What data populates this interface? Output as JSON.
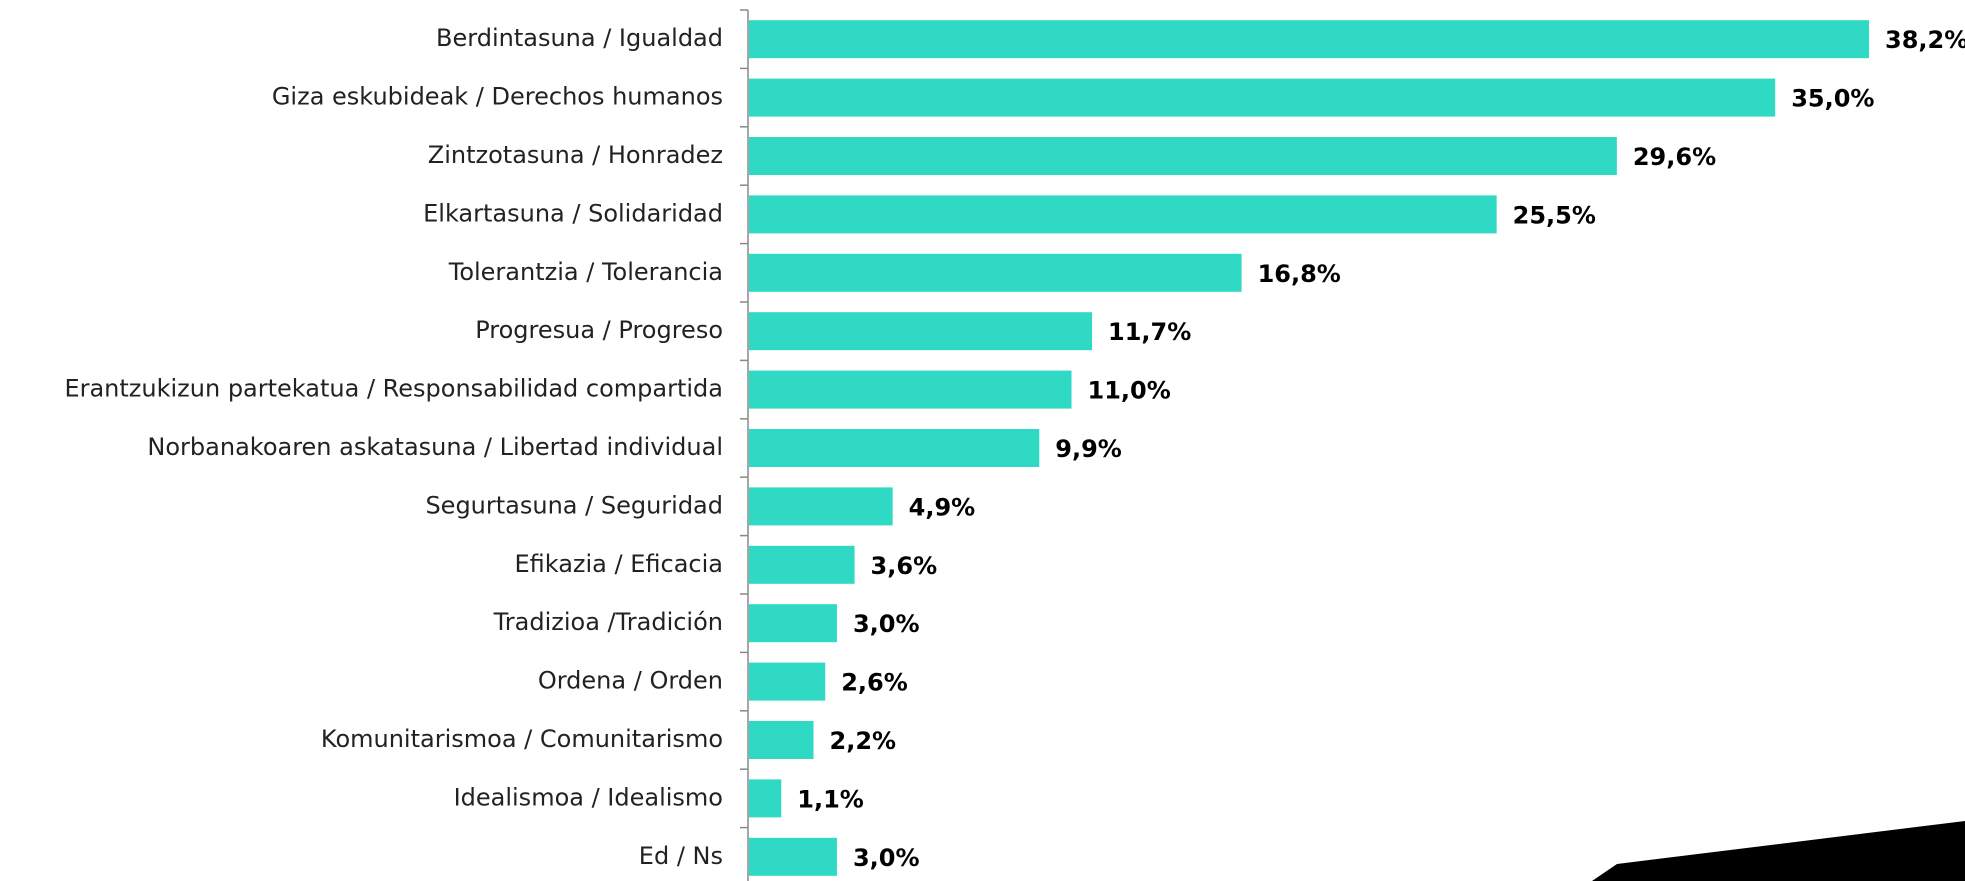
{
  "chart_data": {
    "type": "bar",
    "orientation": "horizontal",
    "categories": [
      "Berdintasuna / Igualdad",
      "Giza eskubideak / Derechos humanos",
      "Zintzotasuna / Honradez",
      "Elkartasuna / Solidaridad",
      "Tolerantzia / Tolerancia",
      "Progresua / Progreso",
      "Erantzukizun partekatua / Responsabilidad compartida",
      "Norbanakoaren askatasuna / Libertad individual",
      "Segurtasuna / Seguridad",
      "Efikazia / Eficacia",
      "Tradizioa /Tradición",
      "Ordena / Orden",
      "Komunitarismoa / Comunitarismo",
      "Idealismoa / Idealismo",
      "Ed / Ns"
    ],
    "values": [
      38.2,
      35.0,
      29.6,
      25.5,
      16.8,
      11.7,
      11.0,
      9.9,
      4.9,
      3.6,
      3.0,
      2.6,
      2.2,
      1.1,
      3.0
    ],
    "value_labels": [
      "38,2%",
      "35,0%",
      "29,6%",
      "25,5%",
      "16,8%",
      "11,7%",
      "11,0%",
      "9,9%",
      "4,9%",
      "3,6%",
      "3,0%",
      "2,6%",
      "2,2%",
      "1,1%",
      "3,0%"
    ],
    "color": "#2fd9c4"
  }
}
